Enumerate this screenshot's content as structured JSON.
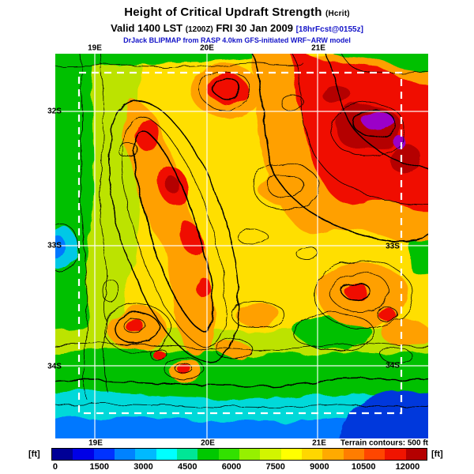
{
  "header": {
    "title": "Height of Critical Updraft Strength",
    "title_param": "(Hcrit)",
    "valid_bold1": "Valid 1400 LST",
    "valid_z": "(1200Z)",
    "valid_bold2": "FRI 30 Jan 2009",
    "valid_fcst": "[18hrFcst@0155z]",
    "model_line": "DrJack BLIPMAP from RASP 4.0km GFS-initiated WRF~ARW model"
  },
  "map": {
    "top_labels": [
      "19E",
      "20E",
      "21E"
    ],
    "bottom_labels": [
      "19E",
      "20E",
      "21E"
    ],
    "left_labels": [
      "32S",
      "33S",
      "34S"
    ],
    "right_labels": [
      "33S",
      "34S"
    ],
    "terrain_note": "Terrain contours: 500 ft"
  },
  "colorbar": {
    "unit": "[ft]",
    "ticks": [
      "0",
      "1500",
      "3000",
      "4500",
      "6000",
      "7500",
      "9000",
      "10500",
      "12000"
    ],
    "colors": [
      "#000096",
      "#0000e6",
      "#0032ff",
      "#0082ff",
      "#00b9ff",
      "#00ffff",
      "#00e696",
      "#00c800",
      "#32e100",
      "#96f000",
      "#d2f500",
      "#ffff00",
      "#ffd700",
      "#ffaa00",
      "#ff7d00",
      "#ff4600",
      "#f01400",
      "#b40000"
    ]
  }
}
